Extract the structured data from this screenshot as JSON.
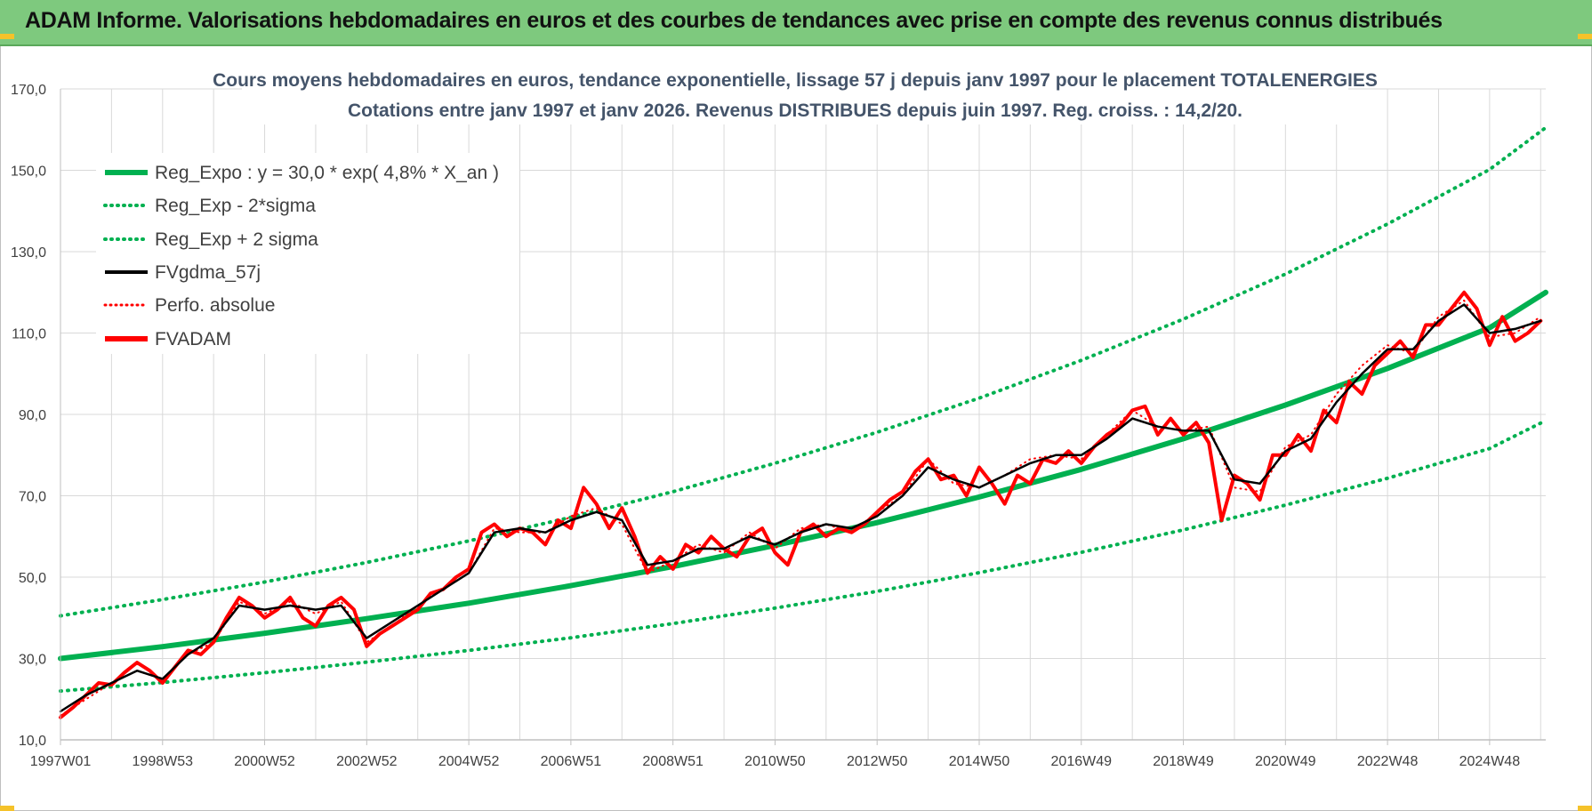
{
  "banner": {
    "title": "ADAM Informe. Valorisations hebdomadaires en euros et des courbes de tendances avec prise en compte des revenus connus distribués"
  },
  "colors": {
    "banner_bg": "#7ec97e",
    "trend": "#00b050",
    "gdma": "#000000",
    "fvadam": "#ff0000",
    "perfo": "#ff0000",
    "grid": "#d9d9d9",
    "title": "#44546a"
  },
  "chart_data": {
    "type": "line",
    "title": [
      "Cours moyens hebdomadaires en euros, tendance exponentielle, lissage 57 j depuis janv 1997 pour le placement TOTALENERGIES",
      "Cotations entre janv 1997 et janv 2026. Revenus DISTRIBUES depuis juin 1997. Reg. croiss. : 14,2/20."
    ],
    "xlabel": "",
    "ylabel": "",
    "x_range": [
      1997.0,
      2026.1
    ],
    "ylim": [
      10,
      170
    ],
    "y_ticks": [
      "10,0",
      "30,0",
      "50,0",
      "70,0",
      "90,0",
      "110,0",
      "130,0",
      "150,0",
      "170,0"
    ],
    "y_tick_values": [
      10,
      30,
      50,
      70,
      90,
      110,
      130,
      150,
      170
    ],
    "x_ticks": [
      "1997W01",
      "1998W53",
      "2000W52",
      "2002W52",
      "2004W52",
      "2006W51",
      "2008W51",
      "2010W50",
      "2012W50",
      "2014W50",
      "2016W49",
      "2018W49",
      "2020W49",
      "2022W48",
      "2024W48"
    ],
    "x_tick_values": [
      1997.0,
      1999.0,
      2001.0,
      2003.0,
      2005.0,
      2007.0,
      2009.0,
      2011.0,
      2013.0,
      2015.0,
      2017.0,
      2019.0,
      2021.0,
      2023.0,
      2025.0
    ],
    "grid": true,
    "legend_position": "top-left",
    "series": [
      {
        "name": "Reg_Expo : y = 30,0 * exp( 4,8% *  X_an )",
        "style": "solid-thick",
        "color": "#00b050",
        "x": [
          1997,
          1999,
          2001,
          2003,
          2005,
          2007,
          2009,
          2011,
          2013,
          2015,
          2017,
          2019,
          2021,
          2023,
          2025,
          2026.1
        ],
        "values": [
          30.0,
          32.9,
          36.2,
          39.8,
          43.6,
          47.9,
          52.6,
          57.8,
          63.4,
          69.7,
          76.5,
          84.0,
          92.3,
          101.3,
          111.3,
          120.0
        ]
      },
      {
        "name": "Reg_Exp - 2*sigma",
        "style": "dotted",
        "color": "#00b050",
        "x": [
          1997,
          1999,
          2001,
          2003,
          2005,
          2007,
          2009,
          2011,
          2013,
          2015,
          2017,
          2019,
          2021,
          2023,
          2025,
          2026.1
        ],
        "values": [
          22.0,
          24.1,
          26.5,
          29.1,
          32.0,
          35.1,
          38.6,
          42.4,
          46.5,
          51.1,
          56.1,
          61.6,
          67.7,
          74.3,
          81.6,
          88.5
        ]
      },
      {
        "name": "Reg_Exp + 2 sigma",
        "style": "dotted",
        "color": "#00b050",
        "x": [
          1997,
          1999,
          2001,
          2003,
          2005,
          2007,
          2009,
          2011,
          2013,
          2015,
          2017,
          2019,
          2021,
          2023,
          2025,
          2026.1
        ],
        "values": [
          40.5,
          44.5,
          48.8,
          53.6,
          58.9,
          64.7,
          71.0,
          78.0,
          85.6,
          94.0,
          103.3,
          113.4,
          124.5,
          136.8,
          150.2,
          160.5
        ]
      },
      {
        "name": "FVgdma_57j",
        "style": "solid",
        "color": "#000000",
        "x": [
          1997.0,
          1997.5,
          1998.0,
          1998.5,
          1999.0,
          1999.5,
          2000.0,
          2000.5,
          2001.0,
          2001.5,
          2002.0,
          2002.5,
          2003.0,
          2003.5,
          2004.0,
          2004.5,
          2005.0,
          2005.5,
          2006.0,
          2006.5,
          2007.0,
          2007.5,
          2008.0,
          2008.5,
          2009.0,
          2009.5,
          2010.0,
          2010.5,
          2011.0,
          2011.5,
          2012.0,
          2012.5,
          2013.0,
          2013.5,
          2014.0,
          2014.5,
          2015.0,
          2015.5,
          2016.0,
          2016.5,
          2017.0,
          2017.5,
          2018.0,
          2018.5,
          2019.0,
          2019.5,
          2020.0,
          2020.5,
          2021.0,
          2021.5,
          2022.0,
          2022.5,
          2023.0,
          2023.5,
          2024.0,
          2024.5,
          2025.0,
          2025.5,
          2026.0
        ],
        "values": [
          17,
          21,
          24,
          27,
          25,
          31,
          35,
          43,
          42,
          43,
          42,
          43,
          35,
          39,
          43,
          47,
          51,
          61,
          62,
          61,
          64,
          66,
          64,
          53,
          54,
          57,
          57,
          60,
          58,
          61,
          63,
          62,
          65,
          70,
          77,
          74,
          72,
          75,
          78,
          80,
          80,
          84,
          89,
          87,
          86,
          86,
          74,
          73,
          81,
          84,
          93,
          100,
          106,
          106,
          113,
          117,
          110,
          111,
          113
        ]
      },
      {
        "name": "Perfo. absolue",
        "style": "dotted",
        "color": "#ff0000",
        "x": [
          1997.0,
          1997.5,
          1998.0,
          1998.5,
          1999.0,
          1999.5,
          2000.0,
          2000.5,
          2001.0,
          2001.5,
          2002.0,
          2002.5,
          2003.0,
          2003.5,
          2004.0,
          2004.5,
          2005.0,
          2005.5,
          2006.0,
          2006.5,
          2007.0,
          2007.5,
          2008.0,
          2008.5,
          2009.0,
          2009.5,
          2010.0,
          2010.5,
          2011.0,
          2011.5,
          2012.0,
          2012.5,
          2013.0,
          2013.5,
          2014.0,
          2014.5,
          2015.0,
          2015.5,
          2016.0,
          2016.5,
          2017.0,
          2017.5,
          2018.0,
          2018.5,
          2019.0,
          2019.5,
          2020.0,
          2020.5,
          2021.0,
          2021.5,
          2022.0,
          2022.5,
          2023.0,
          2023.5,
          2024.0,
          2024.5,
          2025.0,
          2025.5,
          2026.0
        ],
        "values": [
          16,
          20,
          24,
          27,
          25,
          31,
          34,
          44,
          41,
          44,
          41,
          44,
          34,
          38,
          43,
          47,
          51,
          62,
          61,
          61,
          65,
          67,
          63,
          51,
          54,
          58,
          56,
          61,
          57,
          62,
          63,
          61,
          66,
          70,
          79,
          73,
          72,
          75,
          79,
          80,
          79,
          85,
          91,
          87,
          86,
          87,
          72,
          71,
          82,
          85,
          95,
          102,
          107,
          105,
          114,
          118,
          109,
          110,
          114
        ]
      },
      {
        "name": "FVADAM",
        "style": "solid-thick",
        "color": "#ff0000",
        "x": [
          1997.0,
          1997.25,
          1997.5,
          1997.75,
          1998.0,
          1998.25,
          1998.5,
          1998.75,
          1999.0,
          1999.25,
          1999.5,
          1999.75,
          2000.0,
          2000.25,
          2000.5,
          2000.75,
          2001.0,
          2001.25,
          2001.5,
          2001.75,
          2002.0,
          2002.25,
          2002.5,
          2002.75,
          2003.0,
          2003.25,
          2003.5,
          2003.75,
          2004.0,
          2004.25,
          2004.5,
          2004.75,
          2005.0,
          2005.25,
          2005.5,
          2005.75,
          2006.0,
          2006.25,
          2006.5,
          2006.75,
          2007.0,
          2007.25,
          2007.5,
          2007.75,
          2008.0,
          2008.25,
          2008.5,
          2008.75,
          2009.0,
          2009.25,
          2009.5,
          2009.75,
          2010.0,
          2010.25,
          2010.5,
          2010.75,
          2011.0,
          2011.25,
          2011.5,
          2011.75,
          2012.0,
          2012.25,
          2012.5,
          2012.75,
          2013.0,
          2013.25,
          2013.5,
          2013.75,
          2014.0,
          2014.25,
          2014.5,
          2014.75,
          2015.0,
          2015.25,
          2015.5,
          2015.75,
          2016.0,
          2016.25,
          2016.5,
          2016.75,
          2017.0,
          2017.25,
          2017.5,
          2017.75,
          2018.0,
          2018.25,
          2018.5,
          2018.75,
          2019.0,
          2019.25,
          2019.5,
          2019.75,
          2020.0,
          2020.25,
          2020.5,
          2020.75,
          2021.0,
          2021.25,
          2021.5,
          2021.75,
          2022.0,
          2022.25,
          2022.5,
          2022.75,
          2023.0,
          2023.25,
          2023.5,
          2023.75,
          2024.0,
          2024.25,
          2024.5,
          2024.75,
          2025.0,
          2025.25,
          2025.5,
          2025.75,
          2026.0
        ],
        "values": [
          15.5,
          18,
          21,
          24,
          23.5,
          26.5,
          29,
          27,
          24,
          28,
          32,
          31,
          34,
          40,
          45,
          43,
          40,
          42,
          45,
          40,
          38,
          43,
          45,
          42,
          33,
          36,
          38,
          40,
          42,
          46,
          47,
          50,
          52,
          61,
          63,
          60,
          62,
          61,
          58,
          64,
          62,
          72,
          68,
          62,
          67,
          60,
          51,
          55,
          52,
          58,
          56,
          60,
          57,
          55,
          60,
          62,
          56,
          53,
          61,
          63,
          60,
          62,
          61,
          63,
          66,
          69,
          71,
          76,
          79,
          74,
          75,
          70,
          77,
          73,
          68,
          75,
          73,
          79,
          78,
          81,
          78,
          82,
          85,
          87,
          91,
          92,
          85,
          89,
          85,
          88,
          83,
          64,
          75,
          73,
          69,
          80,
          80,
          85,
          81,
          91,
          88,
          98,
          95,
          102,
          105,
          108,
          104,
          112,
          112,
          116,
          120,
          116,
          107,
          114,
          108,
          110,
          113
        ]
      }
    ]
  }
}
